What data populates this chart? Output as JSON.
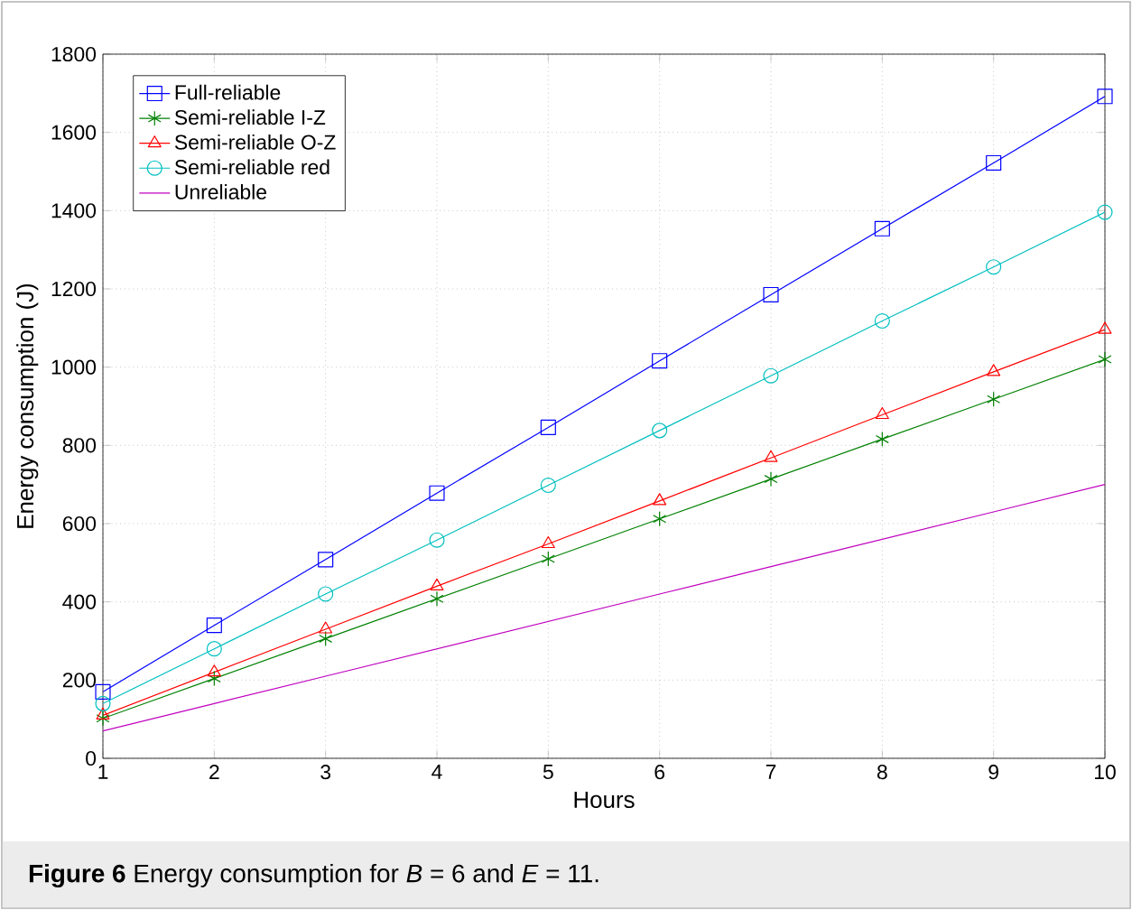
{
  "chart_data": {
    "type": "line",
    "xlabel": "Hours",
    "ylabel": "Energy consumption (J)",
    "annotations": [
      "**Figure 6** Energy consumption for *B* = 6 and *E* = 11."
    ],
    "x": [
      1,
      2,
      3,
      4,
      5,
      6,
      7,
      8,
      9,
      10
    ],
    "series": [
      {
        "name": "Full-reliable",
        "color": "#0000ff",
        "marker": "square",
        "values": [
          170,
          340,
          508,
          678,
          846,
          1016,
          1185,
          1354,
          1522,
          1692
        ]
      },
      {
        "name": "Semi-reliable I-Z",
        "color": "#008000",
        "marker": "cross",
        "values": [
          102,
          204,
          306,
          408,
          510,
          612,
          714,
          816,
          918,
          1020
        ]
      },
      {
        "name": "Semi-reliable O-Z",
        "color": "#ff0000",
        "marker": "triangle",
        "values": [
          110,
          220,
          330,
          440,
          548,
          658,
          768,
          878,
          988,
          1096
        ]
      },
      {
        "name": "Semi-reliable red",
        "color": "#00bfbf",
        "marker": "circle",
        "values": [
          140,
          280,
          420,
          558,
          698,
          838,
          978,
          1118,
          1256,
          1396
        ]
      },
      {
        "name": "Unreliable",
        "color": "#bf00bf",
        "marker": "none",
        "values": [
          70,
          140,
          210,
          280,
          350,
          420,
          490,
          560,
          630,
          700
        ]
      }
    ],
    "xlim": [
      1,
      10
    ],
    "ylim": [
      0,
      1800
    ],
    "xticks": [
      1,
      2,
      3,
      4,
      5,
      6,
      7,
      8,
      9,
      10
    ],
    "yticks": [
      0,
      200,
      400,
      600,
      800,
      1000,
      1200,
      1400,
      1600,
      1800
    ],
    "grid": true,
    "legend": "top left",
    "line_style": "solid"
  }
}
